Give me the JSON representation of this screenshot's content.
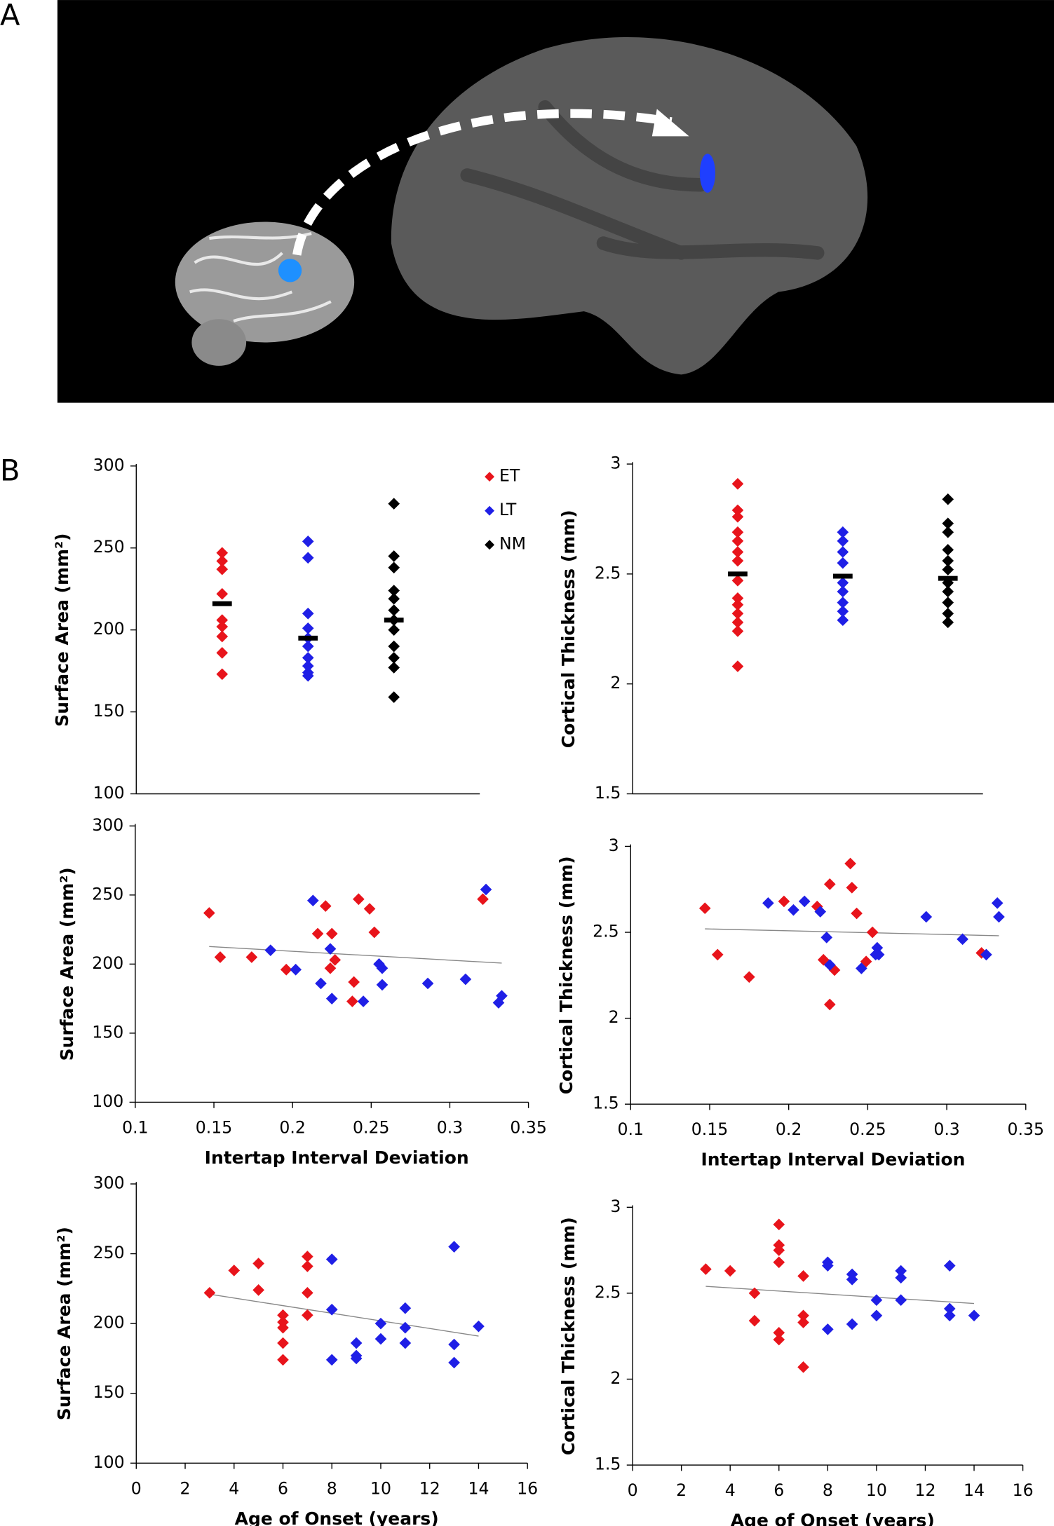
{
  "panels": {
    "a": "A",
    "b": "B"
  },
  "chart_data": [
    {
      "type": "strip",
      "ylabel": "Surface Area (mm²)",
      "ylim": [
        100,
        300
      ],
      "yticks": [
        100,
        150,
        200,
        250,
        300
      ],
      "legend": "top-right",
      "series": [
        {
          "name": "ET",
          "color": "#e8141b",
          "values": [
            247,
            242,
            237,
            222,
            206,
            202,
            196,
            186,
            173
          ],
          "mean": 216
        },
        {
          "name": "LT",
          "color": "#1f1fe6",
          "values": [
            254,
            244,
            210,
            201,
            195,
            190,
            183,
            178,
            174,
            172
          ],
          "mean": 195
        },
        {
          "name": "NM",
          "color": "#000000",
          "values": [
            277,
            245,
            238,
            224,
            219,
            212,
            206,
            200,
            190,
            183,
            177,
            159
          ],
          "mean": 206
        }
      ]
    },
    {
      "type": "strip",
      "ylabel": "Cortical Thickness (mm)",
      "ylim": [
        1.5,
        3
      ],
      "yticks": [
        1.5,
        2,
        2.5,
        3
      ],
      "series": [
        {
          "color": "#e8141b",
          "values": [
            2.91,
            2.79,
            2.76,
            2.69,
            2.65,
            2.6,
            2.56,
            2.47,
            2.39,
            2.36,
            2.32,
            2.28,
            2.24,
            2.08
          ],
          "mean": 2.5
        },
        {
          "color": "#1f1fe6",
          "values": [
            2.69,
            2.65,
            2.6,
            2.55,
            2.46,
            2.42,
            2.37,
            2.33,
            2.29
          ],
          "mean": 2.49
        },
        {
          "color": "#000000",
          "values": [
            2.84,
            2.73,
            2.69,
            2.61,
            2.56,
            2.52,
            2.46,
            2.42,
            2.37,
            2.32,
            2.28
          ],
          "mean": 2.48
        }
      ]
    },
    {
      "type": "scatter",
      "xlabel": "Intertap Interval Deviation",
      "ylabel": "Surface Area (mm²)",
      "xlim": [
        0.1,
        0.35
      ],
      "xticks": [
        0.1,
        0.15,
        0.2,
        0.25,
        0.3,
        0.35
      ],
      "ylim": [
        100,
        300
      ],
      "yticks": [
        100,
        150,
        200,
        250,
        300
      ],
      "series": [
        {
          "color": "#e8141b",
          "x": [
            0.147,
            0.154,
            0.174,
            0.196,
            0.216,
            0.221,
            0.225,
            0.227,
            0.224,
            0.238,
            0.239,
            0.242,
            0.249,
            0.252,
            0.321
          ],
          "values": [
            237,
            205,
            205,
            196,
            222,
            242,
            222,
            203,
            197,
            173,
            187,
            247,
            240,
            223,
            247
          ]
        },
        {
          "color": "#1f1fe6",
          "x": [
            0.186,
            0.202,
            0.213,
            0.224,
            0.218,
            0.225,
            0.245,
            0.255,
            0.257,
            0.257,
            0.286,
            0.31,
            0.323,
            0.333,
            0.331
          ],
          "values": [
            210,
            196,
            246,
            211,
            186,
            175,
            173,
            200,
            197,
            185,
            186,
            189,
            254,
            177,
            172
          ]
        }
      ],
      "trendline": {
        "x": [
          0.147,
          0.333
        ],
        "y": [
          212.7,
          200.7
        ]
      }
    },
    {
      "type": "scatter",
      "xlabel": "Intertap Interval Deviation",
      "ylabel": "Cortical Thickness (mm)",
      "xlim": [
        0.1,
        0.35
      ],
      "xticks": [
        0.1,
        0.15,
        0.2,
        0.25,
        0.3,
        0.35
      ],
      "ylim": [
        1.5,
        3
      ],
      "yticks": [
        1.5,
        2,
        2.5,
        3
      ],
      "series": [
        {
          "color": "#e8141b",
          "x": [
            0.147,
            0.155,
            0.175,
            0.197,
            0.218,
            0.239,
            0.24,
            0.226,
            0.243,
            0.253,
            0.222,
            0.229,
            0.226,
            0.249,
            0.322
          ],
          "values": [
            2.64,
            2.37,
            2.24,
            2.68,
            2.65,
            2.9,
            2.76,
            2.78,
            2.61,
            2.5,
            2.34,
            2.28,
            2.08,
            2.33,
            2.38
          ]
        },
        {
          "color": "#1f1fe6",
          "x": [
            0.187,
            0.203,
            0.21,
            0.22,
            0.224,
            0.226,
            0.246,
            0.256,
            0.257,
            0.255,
            0.287,
            0.31,
            0.325,
            0.332,
            0.333
          ],
          "values": [
            2.67,
            2.63,
            2.68,
            2.62,
            2.47,
            2.31,
            2.29,
            2.41,
            2.37,
            2.37,
            2.59,
            2.46,
            2.37,
            2.67,
            2.59
          ]
        }
      ],
      "trendline": {
        "x": [
          0.147,
          0.333
        ],
        "y": [
          2.52,
          2.48
        ]
      }
    },
    {
      "type": "scatter",
      "xlabel": "Age of Onset (years)",
      "ylabel": "Surface Area (mm²)",
      "xlim": [
        0,
        16
      ],
      "xticks": [
        0,
        2,
        4,
        6,
        8,
        10,
        12,
        14,
        16
      ],
      "ylim": [
        100,
        300
      ],
      "yticks": [
        100,
        150,
        200,
        250,
        300
      ],
      "series": [
        {
          "color": "#e8141b",
          "x": [
            3,
            4,
            5,
            5,
            6,
            6,
            6,
            6,
            6,
            7,
            7,
            7,
            7
          ],
          "values": [
            222,
            238,
            243,
            224,
            206,
            201,
            197,
            186,
            174,
            248,
            241,
            222,
            206
          ]
        },
        {
          "color": "#1f1fe6",
          "x": [
            8,
            8,
            8,
            9,
            9,
            9,
            10,
            10,
            11,
            11,
            11,
            13,
            13,
            13,
            14
          ],
          "values": [
            246,
            210,
            174,
            186,
            177,
            175,
            200,
            189,
            211,
            197,
            186,
            255,
            185,
            172,
            198
          ]
        }
      ],
      "trendline": {
        "x": [
          3,
          14
        ],
        "y": [
          221,
          191
        ]
      }
    },
    {
      "type": "scatter",
      "xlabel": "Age of Onset (years)",
      "ylabel": "Cortical Thickness (mm)",
      "xlim": [
        0,
        16
      ],
      "xticks": [
        0,
        2,
        4,
        6,
        8,
        10,
        12,
        14,
        16
      ],
      "ylim": [
        1.5,
        3
      ],
      "yticks": [
        1.5,
        2,
        2.5,
        3
      ],
      "series": [
        {
          "color": "#e8141b",
          "x": [
            3,
            4,
            5,
            5,
            6,
            6,
            6,
            6,
            6,
            6,
            7,
            7,
            7,
            7
          ],
          "values": [
            2.64,
            2.63,
            2.5,
            2.34,
            2.9,
            2.78,
            2.75,
            2.68,
            2.27,
            2.23,
            2.6,
            2.37,
            2.33,
            2.07
          ]
        },
        {
          "color": "#1f1fe6",
          "x": [
            8,
            8,
            8,
            9,
            9,
            9,
            10,
            10,
            11,
            11,
            11,
            13,
            13,
            13,
            14
          ],
          "values": [
            2.68,
            2.66,
            2.29,
            2.61,
            2.58,
            2.32,
            2.46,
            2.37,
            2.63,
            2.59,
            2.46,
            2.66,
            2.41,
            2.37,
            2.37
          ]
        }
      ],
      "trendline": {
        "x": [
          3,
          14
        ],
        "y": [
          2.54,
          2.44
        ]
      }
    }
  ]
}
